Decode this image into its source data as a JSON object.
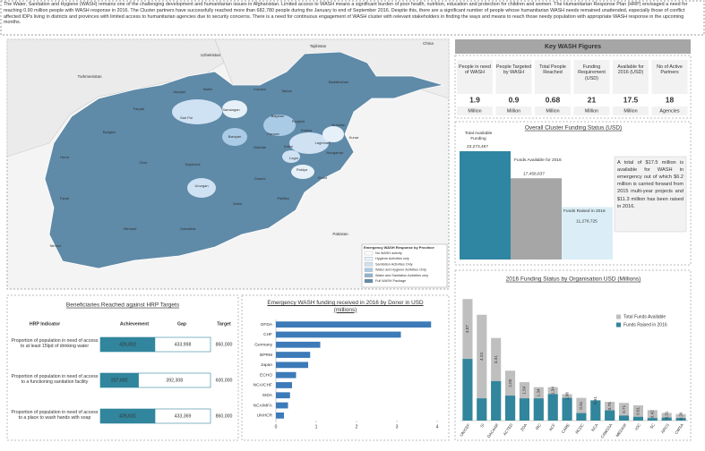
{
  "intro": "The Water, Sanitation and Hygiene (WASH) remains one of the challenging development and humanitarian issues in Afghanistan. Limited access to WASH means a significant burden of poor health, nutrition, education and protection for children and women.  The Humanitarian Response Plan (HRP) envisaged a need for reaching 0.90 million people with WASH response in 2016. The Cluster partners have successfully reached more than 682,780 people during the January to end of September 2016. Despite this, there are a significant number of people whose humanitarian WASH needs remained unattended, especially those of conflict affected IDPs living in districts and provinces with limited access to humanitarian agencies due to security concerns. There is a need for continuous engagement of WASH cluster with relevant stakeholders in finding the ways and means to reach those needy population with appropriate WASH response in the upcoming months.",
  "map": {
    "countries": [
      "Uzbekistan",
      "Tajikistan",
      "Turkmenistan",
      "China",
      "Pakistan"
    ],
    "provinces": [
      "Jawzjan",
      "Balkh",
      "Kunduz",
      "Takhar",
      "Badakhshan",
      "Faryab",
      "Samangan",
      "Sari Pul",
      "Baghlan",
      "Badghis",
      "Bamyan",
      "Parwan",
      "Kapisa",
      "Panjshir",
      "Nuristan",
      "Kunar",
      "Laghman",
      "Kabul",
      "Nangarhar",
      "Wardak",
      "Logar",
      "Herat",
      "Ghor",
      "Daykundi",
      "Ghazni",
      "Paktya",
      "Khost",
      "Paktika",
      "Uruzgan",
      "Zabul",
      "Farah",
      "Nimroz",
      "Hilmand",
      "Kandahar"
    ],
    "legend_title": "Emergency WASH Response by Province",
    "legend": [
      {
        "label": "No WASH activity",
        "color": "#ffffff"
      },
      {
        "label": "Hygiene Activities only",
        "color": "#e6f0f8"
      },
      {
        "label": "Sanitation Activities Only",
        "color": "#cfe2f3"
      },
      {
        "label": "Water and Hygiene Activities Only",
        "color": "#a9cbe6"
      },
      {
        "label": "Water and Sanitation Activities only",
        "color": "#8fb4cf"
      },
      {
        "label": "Full WASH Package",
        "color": "#5f8aa8"
      }
    ]
  },
  "key_figures": {
    "title": "Key WASH Figures",
    "items": [
      {
        "label": "People in need of WASH",
        "value": "1.9",
        "unit": "Million"
      },
      {
        "label": "People Targeted by WASH",
        "value": "0.9",
        "unit": "Million"
      },
      {
        "label": "Total People Reached",
        "value": "0.68",
        "unit": "Million"
      },
      {
        "label": "Funding Requirement (USD)",
        "value": "21",
        "unit": "Million"
      },
      {
        "label": "Available for 2016 (USD)",
        "value": "17.5",
        "unit": "Million"
      },
      {
        "label": "No of Active Partners",
        "value": "18",
        "unit": "Agencies"
      }
    ]
  },
  "chart_data": [
    {
      "type": "bar",
      "title": "Overall Cluster Funding Status (USD)",
      "categories": [
        "Total Available Funding",
        "Funds Available for 2016",
        "Funds Raised in 2016"
      ],
      "values": [
        23273467,
        17458637,
        11278725
      ],
      "value_labels": [
        "23,273,467",
        "17,458,637",
        "11,278,725"
      ],
      "colors": [
        "#2e86a3",
        "#a6a6a6",
        "#dbeef7"
      ],
      "ylim": [
        0,
        25000000
      ],
      "annotation": "A total of $17.5 million is available for WASH in emergency out of which $6.2 million is carried forward from 2015 multi-year projects and $11.3 million has been raised in 2016."
    },
    {
      "type": "stacked-bar-table",
      "title": "Beneficiaries Reached against HRP Targets",
      "headers": [
        "HRP Indicator",
        "Achievement",
        "Gap",
        "Target"
      ],
      "categories": [
        "Proportion of population in need of access to at least 15lpd of drinking water",
        "Proportion of population in need of access to a functioning sanitation facility",
        "Proportion of population in need of access to a place to wash hands with soap"
      ],
      "series": [
        {
          "name": "Achievement",
          "color": "#31859c",
          "values": [
            426002,
            207692,
            426631
          ],
          "value_labels": [
            "426,002",
            "207,692",
            "426,631"
          ]
        },
        {
          "name": "Gap",
          "color": "#ffffff",
          "values": [
            433998,
            392308,
            433369
          ],
          "value_labels": [
            "433,998",
            "392,308",
            "433,369"
          ]
        }
      ],
      "targets": {
        "name": "Target",
        "values": [
          860000,
          600000,
          860000
        ],
        "value_labels": [
          "860,000",
          "600,000",
          "860,000"
        ]
      }
    },
    {
      "type": "hbar",
      "title": "Emergency WASH funding received in 2016 by Donor in USD (millions)",
      "categories": [
        "OFDA",
        "CHF",
        "Germany",
        "BPRM",
        "Japan",
        "ECHO",
        "NCA/CHF",
        "SIDA",
        "NCA/MFA",
        "UNHCR"
      ],
      "values": [
        3.85,
        3.1,
        1.1,
        0.85,
        0.8,
        0.5,
        0.4,
        0.35,
        0.3,
        0.2
      ],
      "color": "#3d7ab8",
      "xlim": [
        0,
        4
      ],
      "xticks": [
        0,
        1,
        2,
        3,
        4
      ]
    },
    {
      "type": "overlap-bar",
      "title": "2016 Funding Status by Organisation USD (Millions)",
      "categories": [
        "UNICEF",
        "SI",
        "DACAAR",
        "ACTED",
        "ZOA",
        "IRC",
        "ACF",
        "CARE",
        "RCDC",
        "NCA",
        "CAWSSA",
        "MEDAIR",
        "IOC",
        "SC",
        "ARCS",
        "CWSA"
      ],
      "series": [
        {
          "name": "Funds Raised in 2016",
          "color": "#31859c",
          "values": [
            2.47,
            0.89,
            1.58,
            1.0,
            0.89,
            0.89,
            1.06,
            0.91,
            0.3,
            0.81,
            0.41,
            0.2,
            0.15,
            0.1,
            0.12,
            0.1
          ]
        },
        {
          "name": "Total Funds Available",
          "color": "#bfbfbf",
          "values": [
            4.87,
            4.24,
            3.31,
            2.0,
            1.54,
            1.34,
            1.34,
            1.06,
            0.91,
            0.81,
            0.75,
            0.71,
            0.61,
            0.42,
            0.31,
            0.26
          ],
          "value_labels": [
            "4.87",
            "4.24",
            "3.31",
            "2.00",
            "1.54",
            "1.34",
            "1.34",
            "1.06",
            "0.91",
            "0.81",
            "0.75",
            "0.71",
            "0.61",
            "0.42",
            "0.31",
            "0.26"
          ]
        }
      ],
      "legend": "top-right",
      "ylim": [
        0,
        5.2
      ]
    }
  ]
}
